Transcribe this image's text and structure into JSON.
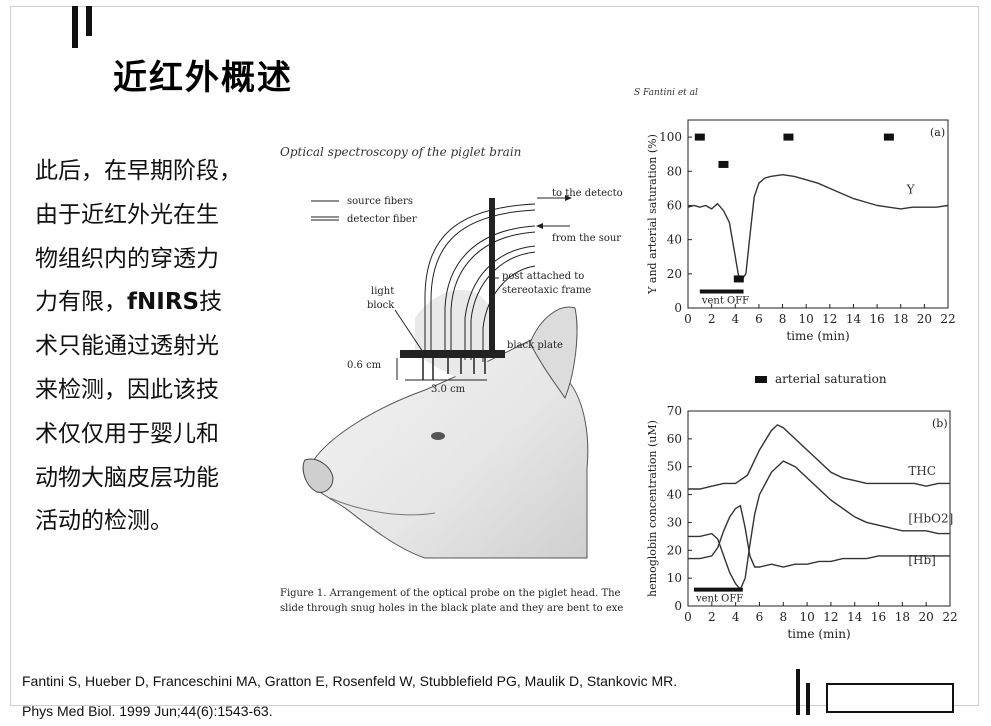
{
  "slide": {
    "title": "近红外概述",
    "body_lines": [
      "此后，在早期阶段，",
      "由于近红外光在生",
      "物组织内的穿透力",
      {
        "pre": "力有限，",
        "bold": "fNIRS",
        "post": "技"
      },
      "术只能通过透射光",
      "来检测，因此该技",
      "术仅仅用于婴儿和",
      "动物大脑皮层功能",
      "活动的检测。"
    ],
    "reference_lines": [
      "Fantini S, Hueber D, Franceschini MA, Gratton E, Rosenfeld W, Stubblefield PG, Maulik D, Stankovic MR.",
      "Phys Med Biol. 1999 Jun;44(6):1543-63."
    ]
  },
  "figure1": {
    "title": "Optical spectroscopy of the piglet brain",
    "labels": {
      "source_fibers": "source fibers",
      "detector_fiber": "detector fiber",
      "to_detector": "to the detecto",
      "from_source": "from the sour",
      "post": "post attached to",
      "post2": "stereotaxic frame",
      "light": "light",
      "block": "block",
      "black_plate": "black plate",
      "depth": "0.6 cm",
      "width": "3.0 cm"
    },
    "caption_lines": [
      "Figure 1. Arrangement of the optical probe on the piglet head. The",
      "slide through snug holes in the black plate and they are bent to exe"
    ]
  },
  "author_note": "S Fantini et al",
  "chart_data": [
    {
      "type": "line",
      "panel": "(a)",
      "xlabel": "time (min)",
      "ylabel": "Y and arterial saturation (%)",
      "xlim": [
        0,
        22
      ],
      "ylim": [
        0,
        110
      ],
      "xticks": [
        0,
        2,
        4,
        6,
        8,
        10,
        12,
        14,
        16,
        18,
        20,
        22
      ],
      "yticks": [
        0,
        20,
        40,
        60,
        80,
        100
      ],
      "series": [
        {
          "name": "Y",
          "x": [
            0,
            0.5,
            1,
            1.5,
            2,
            2.5,
            3,
            3.5,
            4,
            4.3,
            4.6,
            4.9,
            5.2,
            5.6,
            6,
            6.5,
            7,
            8,
            9,
            10,
            11,
            12,
            13,
            14,
            15,
            16,
            17,
            18,
            19,
            20,
            21,
            22
          ],
          "y": [
            59,
            60,
            59,
            60,
            58,
            61,
            57,
            50,
            30,
            18,
            17,
            20,
            40,
            65,
            73,
            76,
            77,
            78,
            77,
            75,
            73,
            70,
            67,
            64,
            62,
            60,
            59,
            58,
            59,
            59,
            59,
            60
          ]
        }
      ],
      "markers": {
        "name": "arterial saturation",
        "x": [
          1,
          3,
          8.5,
          17,
          4.3
        ],
        "y": [
          100,
          84,
          100,
          100,
          17
        ]
      },
      "annotations": [
        {
          "text": "Y",
          "x": 18.5,
          "y": 67
        },
        {
          "text": "vent OFF",
          "x": 1,
          "y": 5,
          "bar_x": [
            1,
            4.7
          ]
        }
      ],
      "legend": {
        "label": "arterial saturation",
        "placement": "below"
      }
    },
    {
      "type": "line",
      "panel": "(b)",
      "xlabel": "time (min)",
      "ylabel": "hemoglobin concentration (uM)",
      "xlim": [
        0,
        22
      ],
      "ylim": [
        0,
        70
      ],
      "xticks": [
        0,
        2,
        4,
        6,
        8,
        10,
        12,
        14,
        16,
        18,
        20,
        22
      ],
      "yticks": [
        0,
        10,
        20,
        30,
        40,
        50,
        60,
        70
      ],
      "series": [
        {
          "name": "THC",
          "x": [
            0,
            1,
            2,
            3,
            4,
            5,
            6,
            7,
            7.5,
            8,
            9,
            10,
            11,
            12,
            13,
            14,
            15,
            16,
            17,
            18,
            19,
            20,
            21,
            22
          ],
          "y": [
            42,
            42,
            43,
            44,
            44,
            47,
            56,
            63,
            65,
            64,
            60,
            56,
            52,
            48,
            46,
            45,
            44,
            44,
            44,
            44,
            44,
            43,
            44,
            44
          ]
        },
        {
          "name": "[HbO2]",
          "x": [
            0,
            1,
            2,
            2.5,
            3,
            3.5,
            4,
            4.4,
            4.8,
            5.2,
            5.6,
            6,
            7,
            8,
            9,
            10,
            11,
            12,
            13,
            14,
            15,
            16,
            17,
            18,
            19,
            20,
            21,
            22
          ],
          "y": [
            25,
            25,
            26,
            24,
            18,
            12,
            8,
            6,
            10,
            22,
            33,
            40,
            48,
            52,
            50,
            46,
            42,
            38,
            35,
            32,
            30,
            29,
            28,
            27,
            27,
            27,
            26,
            26
          ]
        },
        {
          "name": "[Hb]",
          "x": [
            0,
            1,
            2,
            2.5,
            3,
            3.5,
            4,
            4.4,
            4.8,
            5.2,
            5.6,
            6,
            7,
            8,
            9,
            10,
            11,
            12,
            13,
            14,
            15,
            16,
            17,
            18,
            19,
            20,
            21,
            22
          ],
          "y": [
            17,
            17,
            18,
            21,
            27,
            32,
            35,
            36,
            28,
            18,
            14,
            14,
            15,
            14,
            15,
            15,
            16,
            16,
            17,
            17,
            17,
            18,
            18,
            18,
            18,
            18,
            18,
            18
          ]
        }
      ],
      "annotations": [
        {
          "text": "THC",
          "x": 18.5,
          "y": 47
        },
        {
          "text": "[HbO2]",
          "x": 18.5,
          "y": 30
        },
        {
          "text": "[Hb]",
          "x": 18.5,
          "y": 15
        },
        {
          "text": "vent OFF",
          "x": 0.5,
          "y": 3,
          "bar_x": [
            0.5,
            4.6
          ]
        },
        {
          "text": "(b)",
          "x": 20.5,
          "y": 66
        }
      ]
    }
  ]
}
